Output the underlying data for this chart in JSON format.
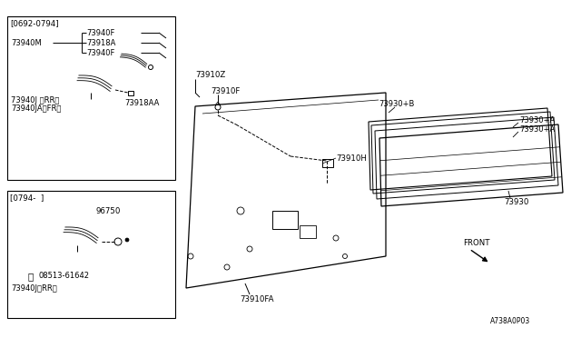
{
  "bg_color": "#ffffff",
  "line_color": "#000000",
  "text_color": "#000000",
  "diagram_id": "A738A0P03",
  "box1_label": "[0692-0794]",
  "box2_label": "[0794-  ]",
  "parts": {
    "main_roof_label": "73930",
    "sunroof_panel_b": "73930+B",
    "sunroof_panel_a1": "73930+A",
    "sunroof_panel_a2": "73930+A",
    "headliner_z": "73910Z",
    "headliner_f": "73910F",
    "headliner_fa": "73910FA",
    "headliner_h": "73910H",
    "sunvisor_m": "73940M",
    "sunvisor_f1": "73940F",
    "sunvisor_f2": "73940F",
    "clip_a": "73918A",
    "clip_aa": "73918AA",
    "bracket_j_rr": "73940J 〈RR〉",
    "bracket_ja_fr": "73940JA〈FR〉",
    "screw": "08513-61642",
    "bracket_j2": "73940J〈RR〉",
    "part_96750": "96750"
  }
}
